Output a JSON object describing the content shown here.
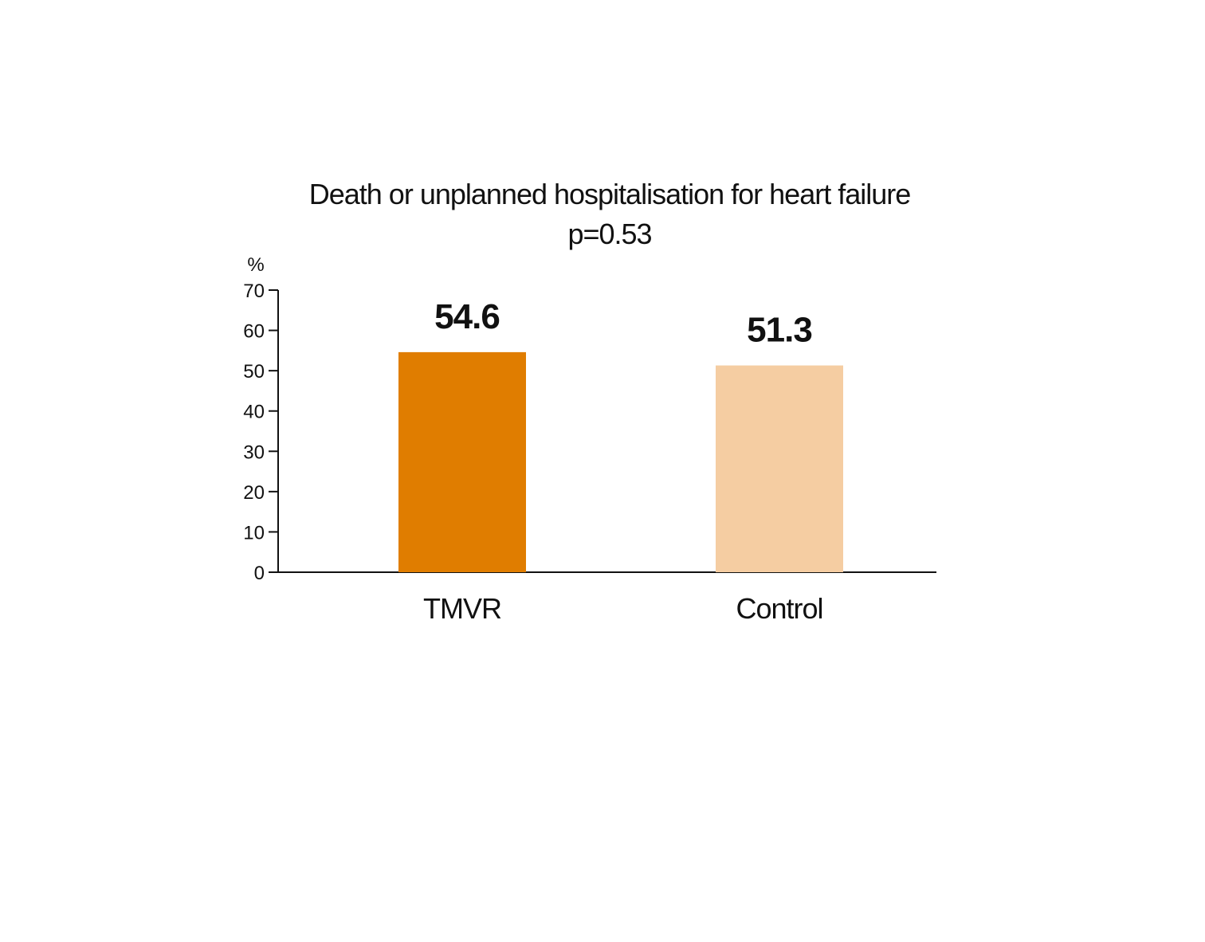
{
  "chart_data": {
    "type": "bar",
    "title": "Death or unplanned hospitalisation for heart failure",
    "subtitle": "p=0.53",
    "ylabel": "%",
    "xlabel": "",
    "ylim": [
      0,
      70
    ],
    "yticks": [
      "0",
      "10",
      "20",
      "30",
      "40",
      "50",
      "60",
      "70"
    ],
    "categories": [
      "TMVR",
      "Control"
    ],
    "values": [
      54.6,
      51.3
    ],
    "value_labels": [
      "54.6",
      "51.3"
    ],
    "colors": [
      "#E07D00",
      "#F5CDA2"
    ],
    "grid": false,
    "legend": "none"
  }
}
